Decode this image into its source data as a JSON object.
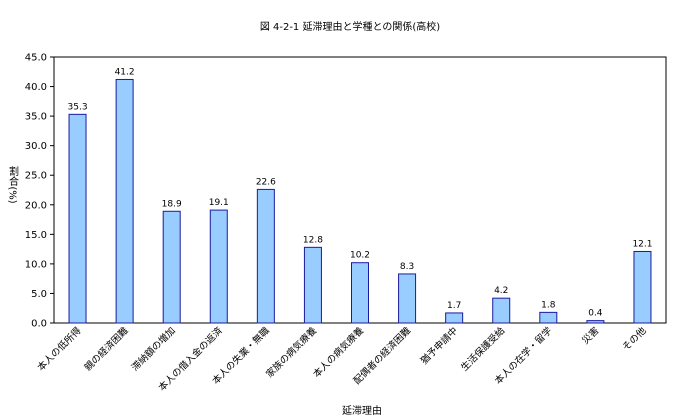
{
  "chart_data": {
    "type": "bar",
    "title": "図 4-2-1 延滞理由と学種との関係(高校)",
    "xlabel": "延滞理由",
    "ylabel": "割合(%)",
    "ylim": [
      0,
      45
    ],
    "yticks": [
      "0.0",
      "5.0",
      "10.0",
      "15.0",
      "20.0",
      "25.0",
      "30.0",
      "35.0",
      "40.0",
      "45.0"
    ],
    "categories": [
      "本人の低所得",
      "親の経済困難",
      "滞納額の増加",
      "本人の借入金の返済",
      "本人の失業・無職",
      "家族の病気療養",
      "本人の病気療養",
      "配偶者の経済困難",
      "猶予申請中",
      "生活保護受給",
      "本人の在学・留学",
      "災害",
      "その他"
    ],
    "values": [
      35.3,
      41.2,
      18.9,
      19.1,
      22.6,
      12.8,
      10.2,
      8.3,
      1.7,
      4.2,
      1.8,
      0.4,
      12.1
    ],
    "data_labels": [
      "35.3",
      "41.2",
      "18.9",
      "19.1",
      "22.6",
      "12.8",
      "10.2",
      "8.3",
      "1.7",
      "4.2",
      "1.8",
      "0.4",
      "12.1"
    ],
    "grid": false,
    "legend": "none",
    "colors": {
      "bar_fill": "#99ccff",
      "bar_stroke": "#1a1aa0",
      "axis": "#000000"
    }
  }
}
